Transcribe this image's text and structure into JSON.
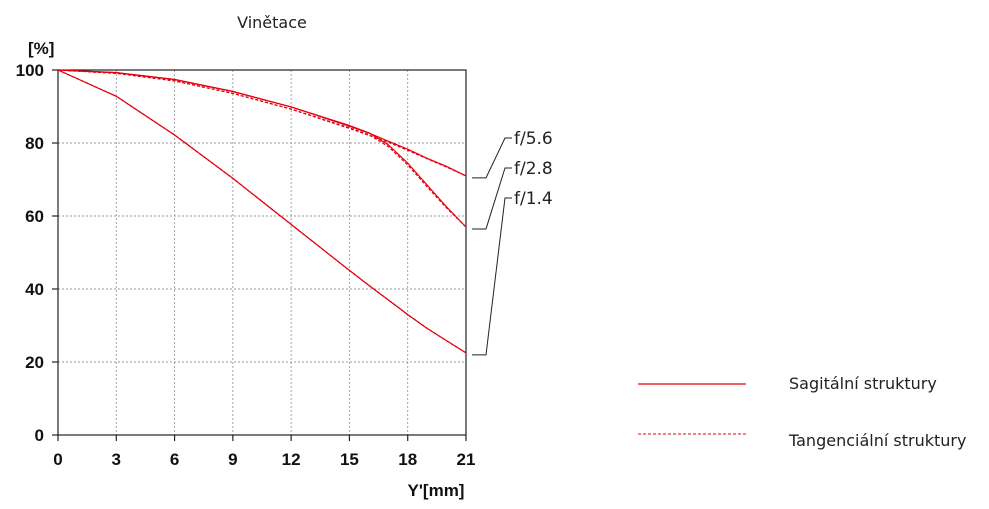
{
  "chart_data": {
    "type": "line",
    "title": "Vinětace",
    "ylabel": "[%]",
    "xlabel": "Y'[mm]",
    "xlim": [
      0,
      21
    ],
    "ylim": [
      0,
      100
    ],
    "x_ticks": [
      "0",
      "3",
      "6",
      "9",
      "12",
      "15",
      "18",
      "21"
    ],
    "y_ticks": [
      "0",
      "20",
      "40",
      "60",
      "80",
      "100"
    ],
    "grid": true,
    "color": "#e3000f",
    "x": [
      0,
      3,
      6,
      9,
      12,
      15,
      16,
      17,
      18,
      19,
      20,
      21
    ],
    "series": [
      {
        "aperture": "f/5.6",
        "structure": "Sagitální struktury",
        "values": [
          100,
          99.3,
          97.4,
          94.1,
          89.9,
          84.6,
          82.7,
          80.5,
          78.3,
          75.8,
          73.6,
          71.0
        ]
      },
      {
        "aperture": "f/5.6",
        "structure": "Tangenciální struktury",
        "values": [
          100,
          99.1,
          97.0,
          93.6,
          89.3,
          84.0,
          82.1,
          80.2,
          78.0,
          75.7,
          73.4,
          71.0
        ]
      },
      {
        "aperture": "f/2.8",
        "structure": "Sagitální struktury",
        "values": [
          100,
          99.3,
          97.4,
          94.1,
          89.9,
          84.8,
          82.8,
          79.5,
          74.5,
          68.5,
          62.5,
          57.0
        ]
      },
      {
        "aperture": "f/2.8",
        "structure": "Tangenciální struktury",
        "values": [
          100,
          99.1,
          97.0,
          93.6,
          89.3,
          84.2,
          82.3,
          79.0,
          74.0,
          68.0,
          62.2,
          57.0
        ]
      },
      {
        "aperture": "f/1.4",
        "structure": "Sagitální struktury",
        "values": [
          100,
          92.8,
          82.2,
          70.3,
          57.7,
          45.1,
          41.0,
          37.0,
          33.0,
          29.2,
          25.8,
          22.5
        ]
      },
      {
        "aperture": "f/1.4",
        "structure": "Tangenciální struktury",
        "values": [
          100,
          92.8,
          82.2,
          70.3,
          57.7,
          45.1,
          41.0,
          37.0,
          33.0,
          29.2,
          25.8,
          22.5
        ]
      }
    ],
    "aperture_labels": [
      "f/5.6",
      "f/2.8",
      "f/1.4"
    ],
    "legend": [
      {
        "label": "Sagitální struktury",
        "style": "solid"
      },
      {
        "label": "Tangenciální struktury",
        "style": "dashed"
      }
    ]
  }
}
